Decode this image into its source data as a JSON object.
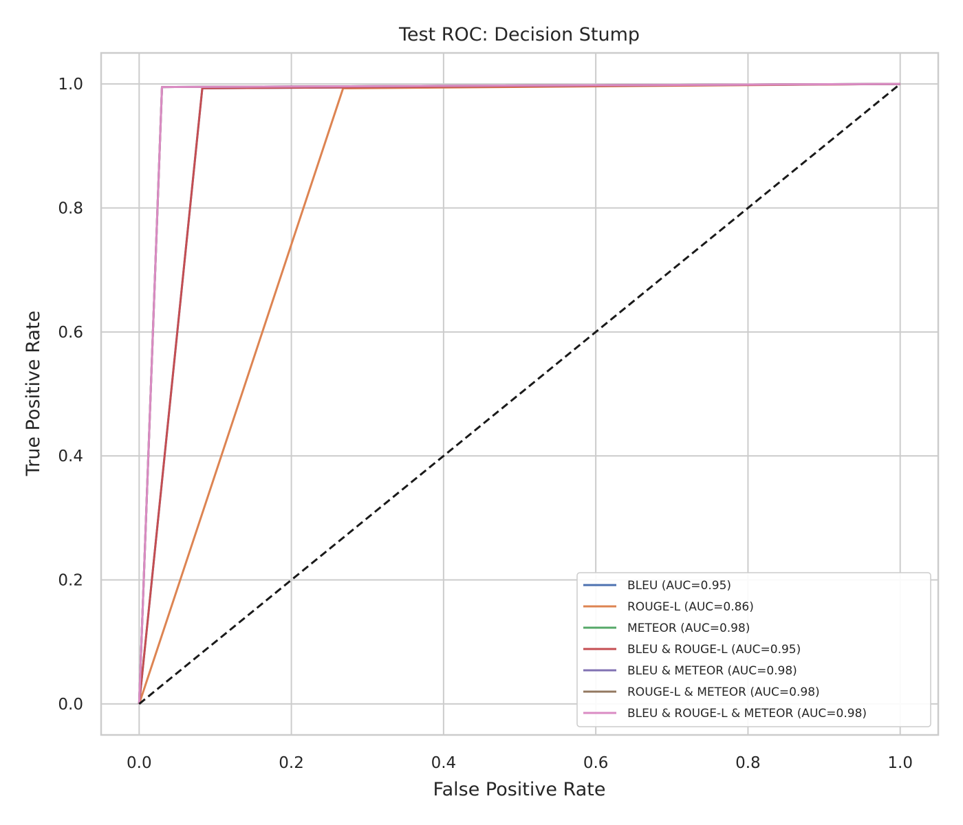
{
  "chart_data": {
    "type": "line",
    "title": "Test ROC: Decision Stump",
    "xlabel": "False Positive Rate",
    "ylabel": "True Positive Rate",
    "xlim": [
      -0.05,
      1.05
    ],
    "ylim": [
      -0.05,
      1.05
    ],
    "xticks": [
      0.0,
      0.2,
      0.4,
      0.6,
      0.8,
      1.0
    ],
    "yticks": [
      0.0,
      0.2,
      0.4,
      0.6,
      0.8,
      1.0
    ],
    "xtick_labels": [
      "0.0",
      "0.2",
      "0.4",
      "0.6",
      "0.8",
      "1.0"
    ],
    "ytick_labels": [
      "0.0",
      "0.2",
      "0.4",
      "0.6",
      "0.8",
      "1.0"
    ],
    "grid": true,
    "legend_position": "bottom-right",
    "series": [
      {
        "name": "BLEU (AUC=0.95)",
        "color": "#4c72b0",
        "x": [
          0.0,
          0.083,
          1.0
        ],
        "y": [
          0.0,
          0.993,
          1.0
        ]
      },
      {
        "name": "ROUGE-L (AUC=0.86)",
        "color": "#dd8452",
        "x": [
          0.0,
          0.268,
          1.0
        ],
        "y": [
          0.0,
          0.993,
          1.0
        ]
      },
      {
        "name": "METEOR (AUC=0.98)",
        "color": "#55a868",
        "x": [
          0.0,
          0.03,
          1.0
        ],
        "y": [
          0.0,
          0.995,
          1.0
        ]
      },
      {
        "name": "BLEU & ROUGE-L (AUC=0.95)",
        "color": "#c44e52",
        "x": [
          0.0,
          0.083,
          1.0
        ],
        "y": [
          0.0,
          0.993,
          1.0
        ]
      },
      {
        "name": "BLEU & METEOR (AUC=0.98)",
        "color": "#8172b3",
        "x": [
          0.0,
          0.03,
          1.0
        ],
        "y": [
          0.0,
          0.995,
          1.0
        ]
      },
      {
        "name": "ROUGE-L & METEOR (AUC=0.98)",
        "color": "#937860",
        "x": [
          0.0,
          0.03,
          1.0
        ],
        "y": [
          0.0,
          0.995,
          1.0
        ]
      },
      {
        "name": "BLEU & ROUGE-L & METEOR (AUC=0.98)",
        "color": "#da8bc3",
        "x": [
          0.0,
          0.03,
          1.0
        ],
        "y": [
          0.0,
          0.995,
          1.0
        ]
      }
    ],
    "reference_line": {
      "color": "#1a1a1a",
      "style": "dashed",
      "x": [
        0.0,
        1.0
      ],
      "y": [
        0.0,
        1.0
      ]
    }
  }
}
